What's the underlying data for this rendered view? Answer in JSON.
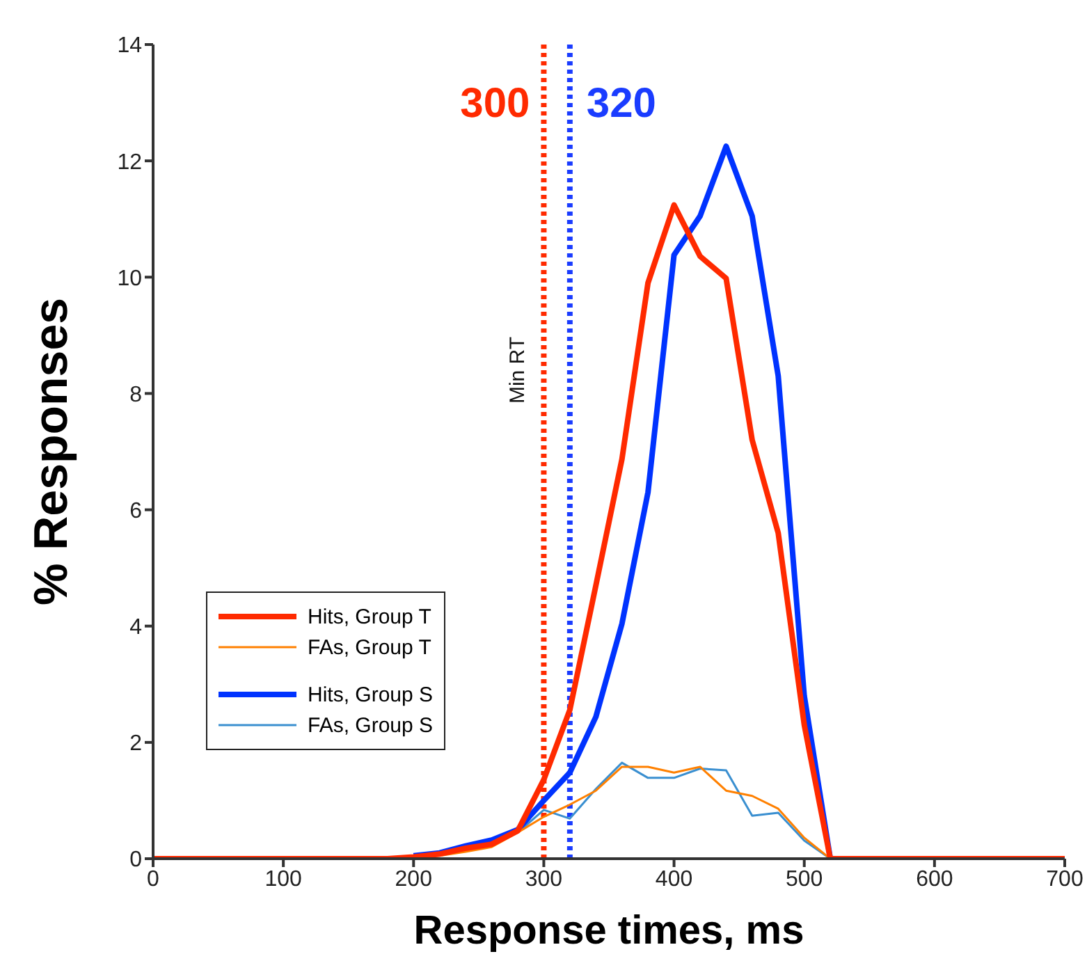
{
  "chart_data": {
    "type": "line",
    "xlabel": "Response times, ms",
    "ylabel": "% Responses",
    "x": [
      0,
      20,
      40,
      60,
      80,
      100,
      120,
      140,
      160,
      180,
      200,
      220,
      240,
      260,
      280,
      300,
      320,
      340,
      360,
      380,
      400,
      420,
      440,
      460,
      480,
      500,
      520,
      540,
      560,
      580,
      600,
      620,
      640,
      660,
      680,
      700
    ],
    "series": [
      {
        "name": "Hits, Group T",
        "color": "#ff2a00",
        "values": [
          0,
          0,
          0,
          0,
          0,
          0,
          0,
          0,
          0,
          0,
          0.03,
          0.08,
          0.18,
          0.25,
          0.48,
          1.36,
          2.56,
          4.7,
          6.87,
          9.9,
          11.24,
          10.36,
          9.98,
          7.2,
          5.6,
          2.3,
          0,
          0,
          0,
          0,
          0,
          0,
          0,
          0,
          0,
          0
        ]
      },
      {
        "name": "FAs, Group T",
        "color": "#ff8000",
        "values": [
          null,
          null,
          null,
          null,
          null,
          null,
          null,
          null,
          null,
          null,
          0.02,
          0.05,
          0.12,
          0.2,
          0.45,
          0.72,
          0.93,
          1.17,
          1.58,
          1.58,
          1.48,
          1.58,
          1.17,
          1.08,
          0.86,
          0.36,
          0,
          null,
          null,
          null,
          null,
          null,
          null,
          null,
          null,
          null
        ]
      },
      {
        "name": "Hits, Group S",
        "color": "#0033ff",
        "values": [
          null,
          null,
          null,
          null,
          null,
          null,
          null,
          null,
          null,
          null,
          0.05,
          0.1,
          0.22,
          0.32,
          0.5,
          1.0,
          1.48,
          2.44,
          4.04,
          6.3,
          10.38,
          11.05,
          12.25,
          11.05,
          8.3,
          2.8,
          0,
          null,
          null,
          null,
          null,
          null,
          null,
          null,
          null,
          null
        ]
      },
      {
        "name": "FAs, Group S",
        "color": "#3a8fd0",
        "values": [
          null,
          null,
          null,
          null,
          null,
          null,
          null,
          null,
          null,
          null,
          null,
          null,
          null,
          0.22,
          0.45,
          0.84,
          0.69,
          1.2,
          1.65,
          1.39,
          1.39,
          1.55,
          1.52,
          0.74,
          0.79,
          0.31,
          0,
          null,
          null,
          null,
          null,
          null,
          null,
          null,
          null,
          null
        ]
      }
    ],
    "xlim": [
      0,
      700
    ],
    "xticks": [
      0,
      100,
      200,
      300,
      400,
      500,
      600,
      700
    ],
    "ylim": [
      0,
      14
    ],
    "yticks": [
      0,
      2,
      4,
      6,
      8,
      10,
      12,
      14
    ],
    "ref_lines": [
      {
        "axis": "x",
        "value": 300,
        "label": "300",
        "color": "#ff2a00",
        "line_style": "dotted"
      },
      {
        "axis": "x",
        "value": 320,
        "label": "320",
        "color": "#1a3cff",
        "line_style": "dotted"
      }
    ],
    "annotations": [
      {
        "text": "Min RT",
        "x": 300,
        "y": 8.4
      }
    ],
    "legend": "left",
    "grid": false,
    "marker": "none",
    "line_style": "solid"
  }
}
